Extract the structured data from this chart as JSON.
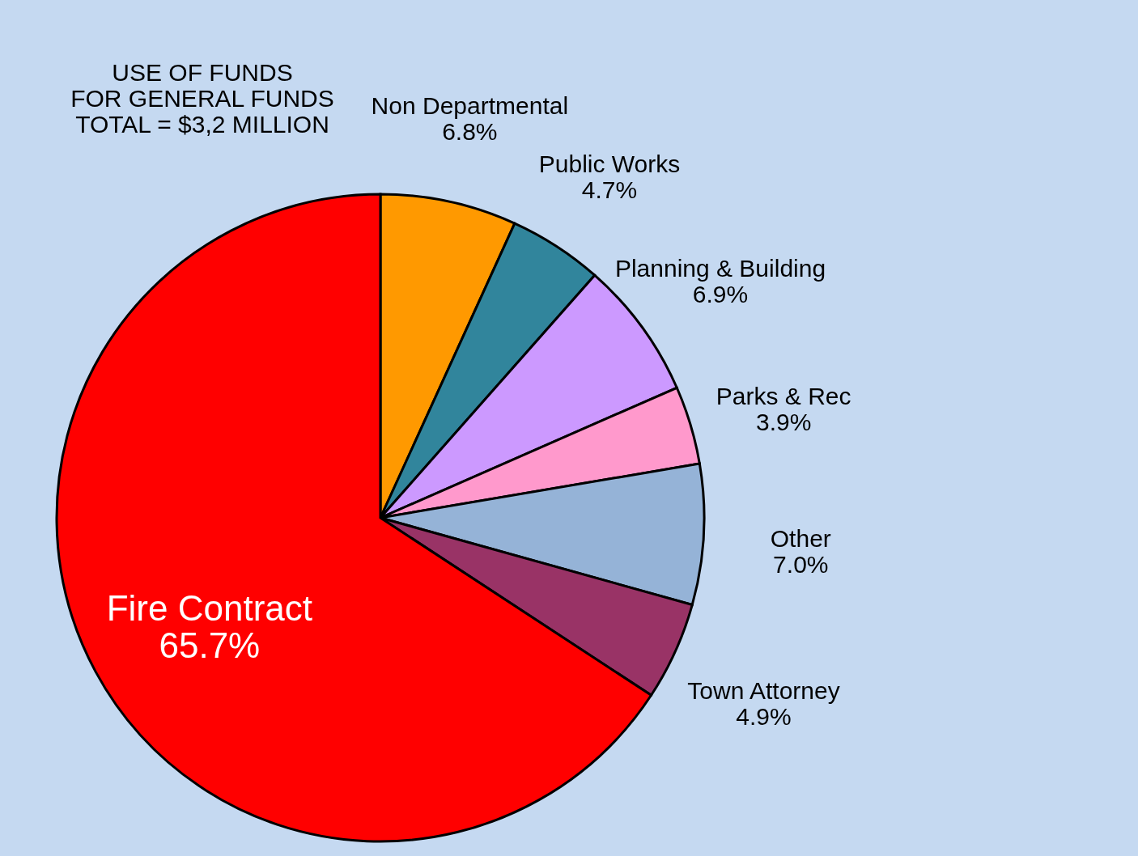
{
  "chart_data": {
    "type": "pie",
    "title": [
      "USE OF FUNDS",
      "FOR GENERAL FUNDS",
      "TOTAL = $3,2 MILLION"
    ],
    "categories": [
      "Non Departmental",
      "Public Works",
      "Planning & Building",
      "Parks & Rec",
      "Other",
      "Town Attorney",
      "Fire Contract"
    ],
    "values": [
      6.8,
      4.7,
      6.9,
      3.9,
      7.0,
      4.9,
      65.7
    ],
    "colors": [
      "#ff9900",
      "#31859c",
      "#cc99ff",
      "#ff99cc",
      "#95b3d7",
      "#993366",
      "#ff0000"
    ],
    "value_labels": [
      "6.8%",
      "4.7%",
      "6.9%",
      "3.9%",
      "7.0%",
      "4.9%",
      "65.7%"
    ],
    "legend": false
  }
}
